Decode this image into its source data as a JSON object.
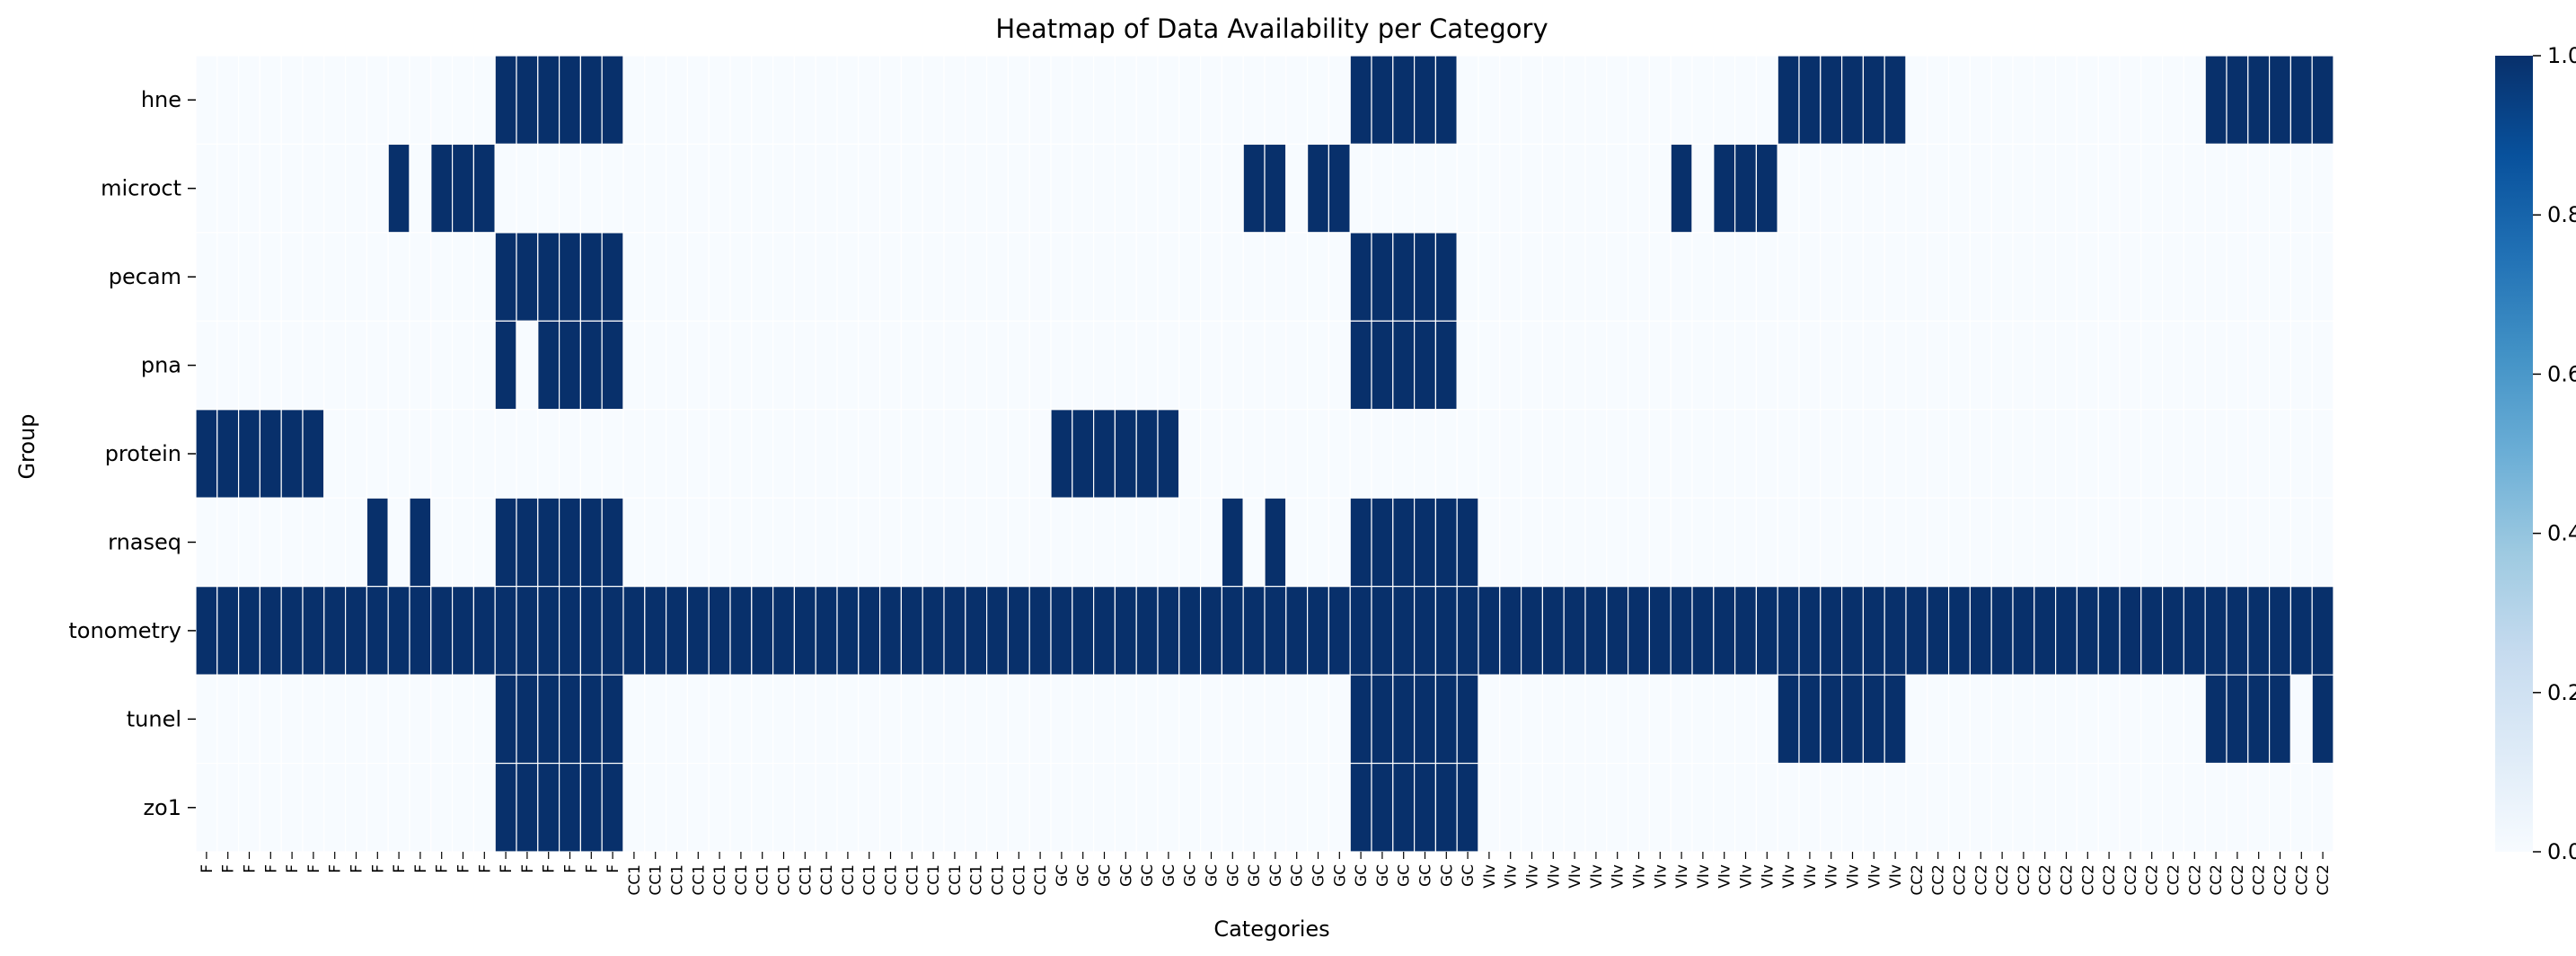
{
  "chart_data": {
    "type": "heatmap",
    "title": "Heatmap of Data Availability per Category",
    "xlabel": "Categories",
    "ylabel": "Group",
    "rows": [
      "hne",
      "microct",
      "pecam",
      "pna",
      "protein",
      "rnaseq",
      "tonometry",
      "tunel",
      "zo1"
    ],
    "x_labels": [
      "F",
      "F",
      "F",
      "F",
      "F",
      "F",
      "F",
      "F",
      "F",
      "F",
      "F",
      "F",
      "F",
      "F",
      "F",
      "F",
      "F",
      "F",
      "F",
      "F",
      "CC1",
      "CC1",
      "CC1",
      "CC1",
      "CC1",
      "CC1",
      "CC1",
      "CC1",
      "CC1",
      "CC1",
      "CC1",
      "CC1",
      "CC1",
      "CC1",
      "CC1",
      "CC1",
      "CC1",
      "CC1",
      "CC1",
      "CC1",
      "GC",
      "GC",
      "GC",
      "GC",
      "GC",
      "GC",
      "GC",
      "GC",
      "GC",
      "GC",
      "GC",
      "GC",
      "GC",
      "GC",
      "GC",
      "GC",
      "GC",
      "GC",
      "GC",
      "GC",
      "VIv",
      "VIv",
      "VIv",
      "VIv",
      "VIv",
      "VIv",
      "VIv",
      "VIv",
      "VIv",
      "VIv",
      "VIv",
      "VIv",
      "VIv",
      "VIv",
      "VIv",
      "VIv",
      "VIv",
      "VIv",
      "VIv",
      "VIv",
      "CC2",
      "CC2",
      "CC2",
      "CC2",
      "CC2",
      "CC2",
      "CC2",
      "CC2",
      "CC2",
      "CC2",
      "CC2",
      "CC2",
      "CC2",
      "CC2",
      "CC2",
      "CC2",
      "CC2",
      "CC2",
      "CC2",
      "CC2"
    ],
    "filled_ranges": {
      "hne": [
        [
          14,
          19
        ],
        [
          54,
          58
        ],
        [
          74,
          79
        ],
        [
          94,
          99
        ]
      ],
      "microct": [
        [
          9,
          9
        ],
        [
          11,
          13
        ],
        [
          49,
          50
        ],
        [
          52,
          53
        ],
        [
          69,
          69
        ],
        [
          71,
          73
        ]
      ],
      "pecam": [
        [
          14,
          19
        ],
        [
          54,
          58
        ]
      ],
      "pna": [
        [
          14,
          14
        ],
        [
          16,
          19
        ],
        [
          54,
          58
        ]
      ],
      "protein": [
        [
          0,
          5
        ],
        [
          40,
          45
        ]
      ],
      "rnaseq": [
        [
          8,
          8
        ],
        [
          10,
          10
        ],
        [
          14,
          19
        ],
        [
          48,
          48
        ],
        [
          50,
          50
        ],
        [
          54,
          59
        ]
      ],
      "tonometry": [
        [
          0,
          99
        ]
      ],
      "tunel": [
        [
          14,
          19
        ],
        [
          54,
          59
        ],
        [
          74,
          79
        ],
        [
          94,
          97
        ],
        [
          99,
          99
        ]
      ],
      "zo1": [
        [
          14,
          19
        ],
        [
          54,
          59
        ]
      ]
    },
    "value_range": [
      0.0,
      1.0
    ],
    "colorbar": {
      "ticks": [
        "0.0",
        "0.2",
        "0.4",
        "0.6",
        "0.8",
        "1.0"
      ],
      "colormap": "Blues"
    },
    "colors": {
      "empty": "#f7fbff",
      "filled": "#08306b",
      "grid_line": "#ffffff"
    }
  }
}
